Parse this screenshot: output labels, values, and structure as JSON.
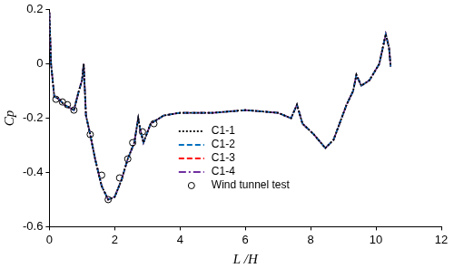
{
  "chart_data": {
    "type": "line",
    "x_label": "L /H",
    "y_label": "Cp",
    "xlim": [
      0,
      12
    ],
    "xticks": [
      0,
      2,
      4,
      6,
      8,
      10,
      12
    ],
    "ylim": [
      -0.6,
      0.2
    ],
    "yticks": [
      -0.6,
      -0.4,
      -0.2,
      0,
      0.2
    ],
    "grid": false,
    "legend": "lower center",
    "series": [
      {
        "name": "C1-1",
        "color": "#000000",
        "line_style": "dotted",
        "x": [
          0,
          0.05,
          0.15,
          0.3,
          0.45,
          0.6,
          0.75,
          0.9,
          1.0,
          1.05,
          1.12,
          1.25,
          1.4,
          1.6,
          1.8,
          2.0,
          2.2,
          2.4,
          2.6,
          2.72,
          2.78,
          2.88,
          3.1,
          3.5,
          4,
          5,
          6,
          7,
          7.4,
          7.58,
          7.75,
          8.1,
          8.45,
          8.7,
          9.1,
          9.3,
          9.4,
          9.55,
          9.8,
          10.1,
          10.3,
          10.4,
          10.45
        ],
        "values": [
          0.19,
          0.0,
          -0.12,
          -0.13,
          -0.15,
          -0.16,
          -0.17,
          -0.1,
          -0.06,
          0.0,
          -0.19,
          -0.26,
          -0.35,
          -0.45,
          -0.5,
          -0.49,
          -0.43,
          -0.35,
          -0.29,
          -0.2,
          -0.24,
          -0.29,
          -0.22,
          -0.19,
          -0.18,
          -0.18,
          -0.17,
          -0.18,
          -0.2,
          -0.15,
          -0.22,
          -0.26,
          -0.31,
          -0.28,
          -0.15,
          -0.1,
          -0.04,
          -0.08,
          -0.06,
          0.0,
          0.11,
          0.06,
          -0.01
        ]
      },
      {
        "name": "C1-2",
        "color": "#0070c0",
        "line_style": "dashed",
        "x": [
          0,
          0.05,
          0.15,
          0.3,
          0.45,
          0.6,
          0.75,
          0.9,
          1.0,
          1.05,
          1.12,
          1.25,
          1.4,
          1.6,
          1.8,
          2.0,
          2.2,
          2.4,
          2.6,
          2.72,
          2.78,
          2.88,
          3.1,
          3.5,
          4,
          5,
          6,
          7,
          7.4,
          7.58,
          7.75,
          8.1,
          8.45,
          8.7,
          9.1,
          9.3,
          9.4,
          9.55,
          9.8,
          10.1,
          10.3,
          10.4,
          10.45
        ],
        "values": [
          0.19,
          0.0,
          -0.12,
          -0.13,
          -0.15,
          -0.16,
          -0.17,
          -0.1,
          -0.06,
          0.0,
          -0.19,
          -0.26,
          -0.35,
          -0.45,
          -0.5,
          -0.49,
          -0.43,
          -0.35,
          -0.29,
          -0.2,
          -0.24,
          -0.29,
          -0.22,
          -0.19,
          -0.18,
          -0.18,
          -0.17,
          -0.18,
          -0.2,
          -0.15,
          -0.22,
          -0.26,
          -0.31,
          -0.28,
          -0.15,
          -0.1,
          -0.04,
          -0.08,
          -0.06,
          0.0,
          0.11,
          0.06,
          -0.01
        ]
      },
      {
        "name": "C1-3",
        "color": "#ff0000",
        "line_style": "dashed",
        "x": [
          0,
          0.05,
          0.15,
          0.3,
          0.45,
          0.6,
          0.75,
          0.9,
          1.0,
          1.05,
          1.12,
          1.25,
          1.4,
          1.6,
          1.8,
          2.0,
          2.2,
          2.4,
          2.6,
          2.72,
          2.78,
          2.88,
          3.1,
          3.5,
          4,
          5,
          6,
          7,
          7.4,
          7.58,
          7.75,
          8.1,
          8.45,
          8.7,
          9.1,
          9.3,
          9.4,
          9.55,
          9.8,
          10.1,
          10.3,
          10.4,
          10.45
        ],
        "values": [
          0.19,
          0.0,
          -0.12,
          -0.13,
          -0.15,
          -0.16,
          -0.17,
          -0.1,
          -0.06,
          0.0,
          -0.19,
          -0.26,
          -0.35,
          -0.45,
          -0.5,
          -0.49,
          -0.43,
          -0.35,
          -0.29,
          -0.2,
          -0.24,
          -0.29,
          -0.22,
          -0.19,
          -0.18,
          -0.18,
          -0.17,
          -0.18,
          -0.2,
          -0.15,
          -0.22,
          -0.26,
          -0.31,
          -0.28,
          -0.15,
          -0.1,
          -0.04,
          -0.08,
          -0.06,
          0.0,
          0.11,
          0.06,
          -0.01
        ]
      },
      {
        "name": "C1-4",
        "color": "#7030a0",
        "line_style": "dashdot",
        "x": [
          0,
          0.05,
          0.15,
          0.3,
          0.45,
          0.6,
          0.75,
          0.9,
          1.0,
          1.05,
          1.12,
          1.25,
          1.4,
          1.6,
          1.8,
          2.0,
          2.2,
          2.4,
          2.6,
          2.72,
          2.78,
          2.88,
          3.1,
          3.5,
          4,
          5,
          6,
          7,
          7.4,
          7.58,
          7.75,
          8.1,
          8.45,
          8.7,
          9.1,
          9.3,
          9.4,
          9.55,
          9.8,
          10.1,
          10.3,
          10.4,
          10.45
        ],
        "values": [
          0.19,
          0.0,
          -0.12,
          -0.13,
          -0.15,
          -0.16,
          -0.17,
          -0.1,
          -0.06,
          0.0,
          -0.19,
          -0.26,
          -0.35,
          -0.45,
          -0.5,
          -0.49,
          -0.43,
          -0.35,
          -0.29,
          -0.2,
          -0.24,
          -0.29,
          -0.22,
          -0.19,
          -0.18,
          -0.18,
          -0.17,
          -0.18,
          -0.2,
          -0.15,
          -0.22,
          -0.26,
          -0.31,
          -0.28,
          -0.15,
          -0.1,
          -0.04,
          -0.08,
          -0.06,
          0.0,
          0.11,
          0.06,
          -0.01
        ]
      },
      {
        "name": "Wind tunnel test",
        "color": "#000000",
        "type": "scatter",
        "marker": "open_circle",
        "x": [
          0.2,
          0.4,
          0.55,
          0.75,
          1.25,
          1.6,
          1.8,
          2.15,
          2.4,
          2.55,
          2.85,
          3.2
        ],
        "values": [
          -0.13,
          -0.14,
          -0.15,
          -0.17,
          -0.26,
          -0.41,
          -0.5,
          -0.42,
          -0.35,
          -0.29,
          -0.25,
          -0.22
        ]
      }
    ]
  }
}
